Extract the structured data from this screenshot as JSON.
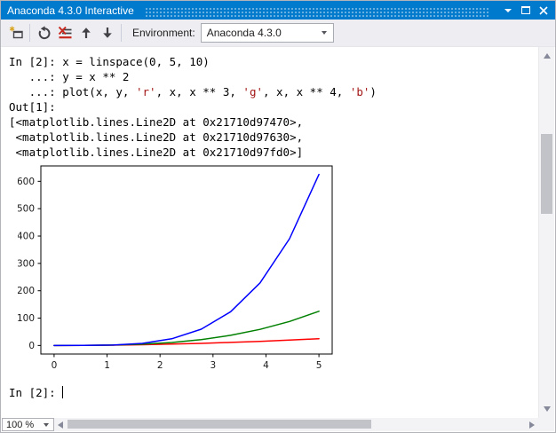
{
  "window": {
    "title": "Anaconda 4.3.0 Interactive"
  },
  "icons": {
    "new-interactive-window-icon": "window outline with gold star",
    "reset-icon": "dark circular arrow",
    "clear-screen-icon": "list lines with red X and red underline",
    "history-previous-icon": "up arrow",
    "history-next-icon": "down arrow",
    "window-position-icon": "white caret down",
    "maximize-icon": "white square outline",
    "close-icon": "white x cross",
    "environment-dropdown-icon": "gray caret down",
    "zoom-dropdown-icon": "gray caret down",
    "scroll-up-icon": "gray triangle up",
    "scroll-down-icon": "gray triangle down",
    "scroll-left-icon": "gray triangle left",
    "scroll-right-icon": "gray triangle right"
  },
  "toolbar": {
    "environment_label": "Environment:",
    "environment_value": "Anaconda 4.3.0"
  },
  "console": {
    "lines": [
      {
        "segments": [
          {
            "t": "In [2]: x = linspace(0, 5, 10)",
            "c": "default"
          }
        ]
      },
      {
        "segments": [
          {
            "t": "   ...: y = x ** 2",
            "c": "default"
          }
        ]
      },
      {
        "segments": [
          {
            "t": "   ...: plot(x, y, ",
            "c": "default"
          },
          {
            "t": "'r'",
            "c": "string"
          },
          {
            "t": ", x, x ** 3, ",
            "c": "default"
          },
          {
            "t": "'g'",
            "c": "string"
          },
          {
            "t": ", x, x ** 4, ",
            "c": "default"
          },
          {
            "t": "'b'",
            "c": "string"
          },
          {
            "t": ")",
            "c": "default"
          }
        ]
      },
      {
        "segments": [
          {
            "t": "Out[1]:",
            "c": "default"
          }
        ]
      },
      {
        "segments": [
          {
            "t": "[<matplotlib.lines.Line2D at 0x21710d97470>,",
            "c": "default"
          }
        ]
      },
      {
        "segments": [
          {
            "t": " <matplotlib.lines.Line2D at 0x21710d97630>,",
            "c": "default"
          }
        ]
      },
      {
        "segments": [
          {
            "t": " <matplotlib.lines.Line2D at 0x21710d97fd0>]",
            "c": "default"
          }
        ]
      }
    ],
    "prompt": "In [2]: ",
    "string_color": "#a31515"
  },
  "chart_data": {
    "type": "line",
    "title": "",
    "xlabel": "",
    "ylabel": "",
    "grid": false,
    "legend": null,
    "x": [
      0,
      0.5556,
      1.1111,
      1.6667,
      2.2222,
      2.7778,
      3.3333,
      3.8889,
      4.4444,
      5.0
    ],
    "series": [
      {
        "name": "x ** 2 ('r')",
        "color": "#ff0000",
        "values": [
          0,
          0.309,
          1.235,
          2.778,
          4.938,
          7.716,
          11.111,
          15.123,
          19.753,
          25
        ]
      },
      {
        "name": "x ** 3 ('g')",
        "color": "#008000",
        "values": [
          0,
          0.171,
          1.372,
          4.63,
          10.974,
          21.433,
          37.037,
          58.813,
          87.791,
          125
        ]
      },
      {
        "name": "x ** 4 ('b')",
        "color": "#0000ff",
        "values": [
          0,
          0.095,
          1.524,
          7.716,
          24.387,
          59.537,
          123.457,
          228.717,
          390.184,
          625
        ]
      }
    ],
    "xticks": [
      0,
      1,
      2,
      3,
      4,
      5
    ],
    "yticks": [
      0,
      100,
      200,
      300,
      400,
      500,
      600
    ],
    "xlim": [
      -0.25,
      5.25
    ],
    "ylim": [
      -31.25,
      656.25
    ]
  },
  "statusbar": {
    "zoom_level": "100 %"
  },
  "colors": {
    "titlebar": "#007acc",
    "toolbar_bg": "#eeeef2",
    "scroll_thumb": "#c2c3c9"
  }
}
